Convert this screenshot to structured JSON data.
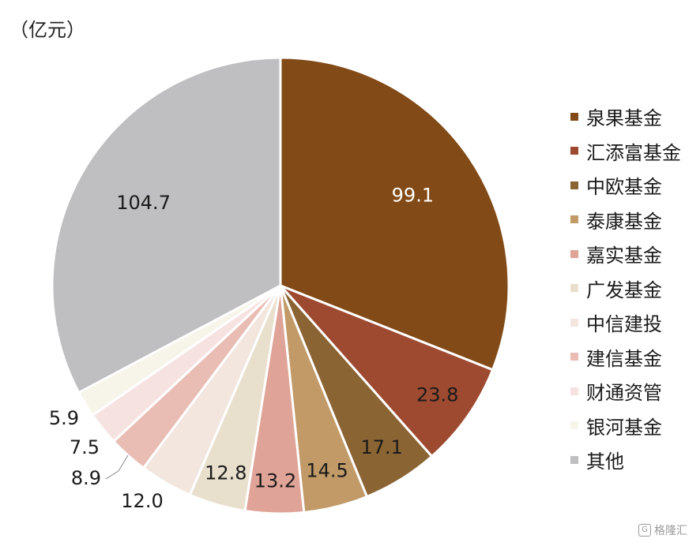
{
  "chart_data": {
    "type": "pie",
    "unit_label": "（亿元）",
    "categories": [
      "泉果基金",
      "汇添富基金",
      "中欧基金",
      "泰康基金",
      "嘉实基金",
      "广发基金",
      "中信建投",
      "建信基金",
      "财通资管",
      "银河基金",
      "其他"
    ],
    "values": [
      99.1,
      23.8,
      17.1,
      14.5,
      13.2,
      12.8,
      12.0,
      8.9,
      7.5,
      5.9,
      104.7
    ],
    "value_labels": [
      "99.1",
      "23.8",
      "17.1",
      "14.5",
      "13.2",
      "12.8",
      "12.0",
      "8.9",
      "7.5",
      "5.9",
      "104.7"
    ],
    "colors": [
      "#824a16",
      "#9d4a31",
      "#8b6434",
      "#c19a68",
      "#dfa497",
      "#e9dfcd",
      "#f2e6df",
      "#e9bcb4",
      "#f6e3e1",
      "#f7f4ea",
      "#bfbfc1"
    ],
    "label_color_light": "#ffffff",
    "label_color_dark": "#1a1a1a",
    "legend_position": "right",
    "start_angle": "12 o'clock",
    "direction": "clockwise"
  },
  "watermark": {
    "text": "格隆汇",
    "icon": "G"
  }
}
